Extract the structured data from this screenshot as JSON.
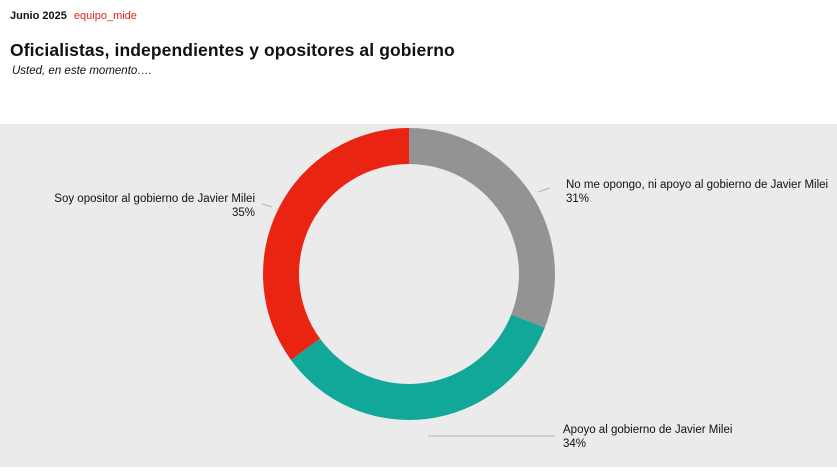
{
  "header": {
    "date": "Junio 2025",
    "brand": "equipo_mide"
  },
  "title": "Oficialistas, independientes y opositores al gobierno",
  "subtitle": "Usted, en este momento….",
  "colors": {
    "chart_background": "#ebebeb",
    "brand": "#e0261a"
  },
  "chart_data": {
    "type": "pie",
    "donut": true,
    "slices": [
      {
        "label": "No me opongo, ni apoyo al gobierno de Javier Milei",
        "value": 31,
        "value_label": "31%",
        "color": "#939393"
      },
      {
        "label": "Apoyo al gobierno de Javier Milei",
        "value": 34,
        "value_label": "34%",
        "color": "#11a89a"
      },
      {
        "label": "Soy opositor al gobierno de Javier Milei",
        "value": 35,
        "value_label": "35%",
        "color": "#ea2413"
      }
    ],
    "legend": "none",
    "start": "top",
    "direction": "clockwise"
  }
}
